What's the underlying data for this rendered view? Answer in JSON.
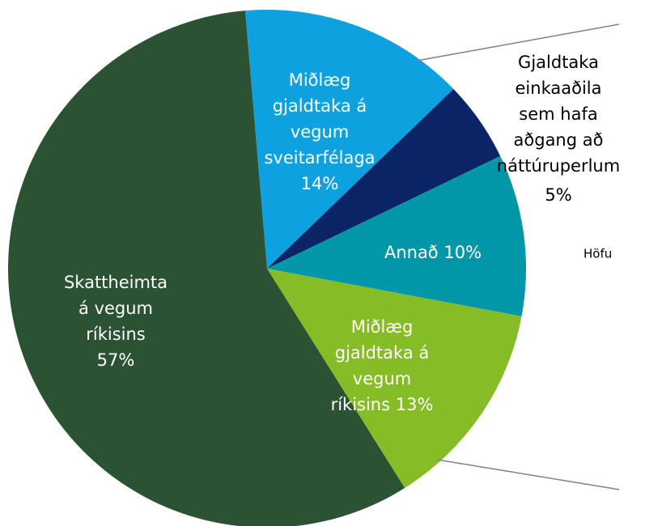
{
  "chart_data": {
    "type": "pie",
    "categories": [
      [
        "Miðlæg",
        "gjaldtaka á",
        "vegum",
        "sveitarfélaga"
      ],
      [
        "Gjaldtaka",
        "einkaaðila",
        "sem hafa",
        "aðgang að",
        "náttúruperlum"
      ],
      [
        "Annað"
      ],
      [
        "Miðlæg",
        "gjaldtaka á",
        "vegum",
        "ríkisins"
      ],
      [
        "Skattheimta",
        "á vegum",
        "ríkisins"
      ]
    ],
    "values": [
      14,
      5,
      10,
      13,
      57
    ],
    "value_labels": [
      "14%",
      "5%",
      "10%",
      "13%",
      "57%"
    ],
    "colors": [
      "#0ea1e0",
      "#0b2466",
      "#0097a9",
      "#86bc25",
      "#2c5234"
    ],
    "label_colors": [
      "#ffffff",
      "#000000",
      "#ffffff",
      "#ffffff",
      "#ffffff"
    ],
    "annotation": "Höfu"
  }
}
